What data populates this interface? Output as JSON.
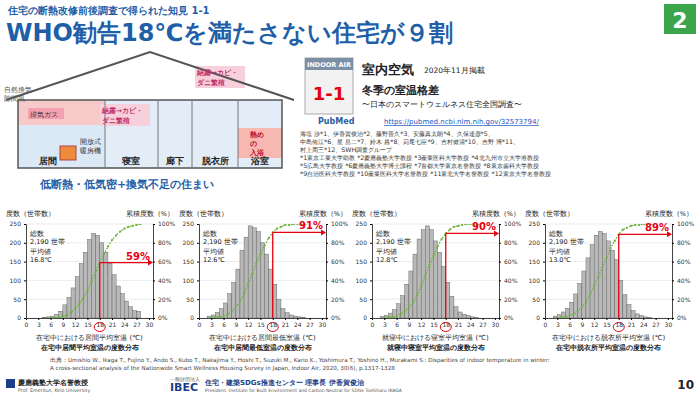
{
  "slide": {
    "kicker": "住宅の断熱改修前後調査で得られた知見 1-1",
    "title": "WHO勧告18℃を満たさない住宅が９割",
    "section_number": "2",
    "page_number": "10",
    "diagram": {
      "rooms": [
        "居間",
        "寝室",
        "廊下",
        "脱衣所",
        "浴室"
      ],
      "notes": [
        "自然換気",
        "隙間風",
        "排気ガス",
        "開放式",
        "暖房機",
        "結露→カビ・",
        "ダニ繁殖",
        "結露→カビ・",
        "ダニ繁殖",
        "熱め",
        "の",
        "入浴"
      ],
      "caption": "低断熱・低気密+換気不足の住まい"
    },
    "paper": {
      "cover_title": "INDOOR AIR",
      "badge": "1-1",
      "journal": "室内空気",
      "issue": "2020年11月掲載",
      "title": "冬季の室温格差",
      "subtitle": "〜日本のスマートウェルネス住宅全国調査〜",
      "index_name": "PubMed",
      "url": "https://pubmed.ncbi.nlm.nih.gov/32573794/",
      "authors": [
        "海塩 渉*1、伊香賀俊治*2、藤野善久*3、安藤真太朗*4、久保達彦*5、",
        "中島侑江*6、星 旦二*7、鈴木 昌*8、苅尾七臣*9、吉村健清*10、吉野 博*11、",
        "村上周三*12、SWH調査グループ",
        "*1東京工業大学助教 *2慶應義塾大学教授 *3産業医科大学教授 *4北九州市立大学准教授",
        "*5広島大学教授 *6慶應義塾大学博士課程 *7首都大学東京名誉教授 *8東京歯科大学教授",
        "*9自治医科大学教授 *10産業医科大学名誉教授 *11東北大学名誉教授 *12東京大学名誉教授"
      ]
    },
    "source": [
      "出典：Umishio W., Ikaga T., Fujino Y., Ando S., Kubo T., Nakajima Y., Hoshi T., Suzuki M., Kario K., Yoshimura T., Yoshino H., Murakami S.: Disparities of indoor temperature in winter:",
      "A cross-sectional analysis of the Nationwide Smart Wellness Housing Survey in Japan, Indoor Air, 2020, 30(6), p.1317-1328"
    ],
    "footer": {
      "org1": "慶應義塾大学名誉教授",
      "org1_sub": "Prof. Emeritus, Keio University",
      "org2_pre": "一般財団法人",
      "org2": "IBEC",
      "org2_name": "住宅・建築SDGs推進センター 理事長 伊香賀俊治",
      "org2_en": "President, Institute for Built Environment and Carbon Neutral for SDGs   Toshiharu IKAGA"
    }
  },
  "chart_data": [
    {
      "type": "histogram",
      "xlabel": "在宅中における居間平均室温 (℃)",
      "caption": "在宅中居間平均室温の度数分布",
      "ylabel": "度数（世帯数）",
      "y2label": "累積度数（%）",
      "total_label": "総数",
      "total": "2,190 世帯",
      "mean_label": "平均値",
      "mean": "16.8℃",
      "xlim": [
        0,
        31
      ],
      "xticks": [
        0,
        3,
        6,
        9,
        12,
        15,
        18,
        21,
        24,
        27,
        30
      ],
      "ylim": [
        0,
        250
      ],
      "yticks": [
        0,
        50,
        100,
        150,
        200,
        250
      ],
      "y2lim": [
        0,
        100
      ],
      "y2ticks": [
        {
          "value": 0,
          "label": "0%"
        },
        {
          "value": 20,
          "label": "20%"
        },
        {
          "value": 40,
          "label": "40%"
        },
        {
          "value": 60,
          "label": "60%"
        },
        {
          "value": 80,
          "label": "80%"
        },
        {
          "value": 100,
          "label": "100%"
        }
      ],
      "grid": true,
      "bins": [
        4,
        5,
        6,
        7,
        8,
        9,
        10,
        11,
        12,
        13,
        14,
        15,
        16,
        17,
        18,
        19,
        20,
        21,
        22,
        23,
        24,
        25,
        26,
        27,
        28
      ],
      "series": [
        {
          "type": "bar",
          "color": "#b8b8b8",
          "values": [
            2,
            3,
            5,
            10,
            18,
            35,
            55,
            80,
            110,
            145,
            175,
            209,
            225,
            220,
            200,
            175,
            145,
            115,
            85,
            65,
            45,
            30,
            20,
            18
          ]
        },
        {
          "type": "line",
          "axis": "y2",
          "color": "#6fb33f",
          "marker": "circle",
          "line_style": "dotted",
          "values": [
            0,
            0,
            0,
            1,
            2,
            3,
            6,
            10,
            15,
            21,
            29,
            39,
            49,
            59,
            68,
            76,
            83,
            88,
            92,
            95,
            97,
            98,
            99,
            100
          ]
        }
      ],
      "annotations": [
        {
          "x": 18,
          "y": 59,
          "label": "59%",
          "color": "#e60012"
        }
      ]
    },
    {
      "type": "histogram",
      "xlabel": "在宅中における居間最低室温 (℃)",
      "caption": "在宅中居間最低室温の度数分布",
      "ylabel": "度数（世帯数）",
      "y2label": "累積度数（%）",
      "total_label": "総数",
      "total": "2,190 世帯",
      "mean_label": "平均値",
      "mean": "12.6℃",
      "xlim": [
        0,
        31
      ],
      "xticks": [
        0,
        3,
        6,
        9,
        12,
        15,
        18,
        21,
        24,
        27,
        30
      ],
      "ylim": [
        0,
        250
      ],
      "yticks": [
        0,
        50,
        100,
        150,
        200,
        250
      ],
      "y2lim": [
        0,
        100
      ],
      "y2ticks": [
        {
          "value": 0,
          "label": "0%"
        },
        {
          "value": 20,
          "label": "20%"
        },
        {
          "value": 40,
          "label": "40%"
        },
        {
          "value": 60,
          "label": "60%"
        },
        {
          "value": 80,
          "label": "80%"
        },
        {
          "value": 100,
          "label": "100%"
        }
      ],
      "grid": true,
      "bins": [
        2,
        3,
        4,
        5,
        6,
        7,
        8,
        9,
        10,
        11,
        12,
        13,
        14,
        15,
        16,
        17,
        18,
        19,
        20,
        21,
        22,
        23,
        24,
        25,
        26
      ],
      "series": [
        {
          "type": "bar",
          "color": "#b8b8b8",
          "values": [
            5,
            8,
            15,
            25,
            40,
            65,
            95,
            130,
            180,
            215,
            245,
            240,
            230,
            200,
            170,
            130,
            90,
            50,
            25,
            14,
            8,
            5,
            3,
            2
          ]
        },
        {
          "type": "line",
          "axis": "y2",
          "color": "#6fb33f",
          "marker": "circle",
          "line_style": "dotted",
          "values": [
            0,
            1,
            1,
            2,
            4,
            7,
            12,
            17,
            26,
            36,
            47,
            58,
            68,
            77,
            85,
            91,
            95,
            97,
            99,
            99,
            100,
            100,
            100,
            100
          ]
        }
      ],
      "annotations": [
        {
          "x": 18,
          "y": 91,
          "label": "91%",
          "color": "#e60012"
        }
      ]
    },
    {
      "type": "histogram",
      "xlabel": "就寝中における寝室平均室温 (℃)",
      "caption": "就寝中寝室平均室温の度数分布",
      "ylabel": "度数（世帯数）",
      "y2label": "累積度数（%）",
      "total_label": "総数",
      "total": "2,190 世帯",
      "mean_label": "平均値",
      "mean": "12.8℃",
      "xlim": [
        0,
        31
      ],
      "xticks": [
        0,
        3,
        6,
        9,
        12,
        15,
        18,
        21,
        24,
        27,
        30
      ],
      "ylim": [
        0,
        250
      ],
      "yticks": [
        0,
        50,
        100,
        150,
        200,
        250
      ],
      "y2lim": [
        0,
        100
      ],
      "y2ticks": [
        {
          "value": 0,
          "label": "0%"
        },
        {
          "value": 20,
          "label": "20%"
        },
        {
          "value": 40,
          "label": "40%"
        },
        {
          "value": 60,
          "label": "60%"
        },
        {
          "value": 80,
          "label": "80%"
        },
        {
          "value": 100,
          "label": "100%"
        }
      ],
      "grid": true,
      "bins": [
        2,
        3,
        4,
        5,
        6,
        7,
        8,
        9,
        10,
        11,
        12,
        13,
        14,
        15,
        16,
        17,
        18,
        19,
        20,
        21,
        22,
        23,
        24,
        25,
        26
      ],
      "series": [
        {
          "type": "bar",
          "color": "#b8b8b8",
          "values": [
            4,
            7,
            13,
            22,
            38,
            60,
            90,
            125,
            170,
            210,
            235,
            245,
            235,
            205,
            175,
            137,
            95,
            58,
            30,
            16,
            10,
            6,
            3,
            1
          ]
        },
        {
          "type": "line",
          "axis": "y2",
          "color": "#6fb33f",
          "marker": "circle",
          "line_style": "dotted",
          "values": [
            0,
            1,
            1,
            2,
            4,
            7,
            11,
            16,
            24,
            34,
            45,
            56,
            66,
            76,
            84,
            90,
            94,
            97,
            98,
            99,
            100,
            100,
            100,
            100
          ]
        }
      ],
      "annotations": [
        {
          "x": 18,
          "y": 90,
          "label": "90%",
          "color": "#e60012"
        }
      ]
    },
    {
      "type": "histogram",
      "xlabel": "在宅中における脱衣所平均室温 (℃)",
      "caption": "在宅中脱衣所平均室温の度数分布",
      "ylabel": "度数（世帯数）",
      "y2label": "累積度数（%）",
      "total_label": "総数",
      "total": "2,190 世帯",
      "mean_label": "平均値",
      "mean": "13.0℃",
      "xlim": [
        0,
        31
      ],
      "xticks": [
        0,
        3,
        6,
        9,
        12,
        15,
        18,
        21,
        24,
        27,
        30
      ],
      "ylim": [
        0,
        250
      ],
      "yticks": [
        0,
        50,
        100,
        150,
        200,
        250
      ],
      "y2lim": [
        0,
        100
      ],
      "y2ticks": [
        {
          "value": 0,
          "label": "0%"
        },
        {
          "value": 20,
          "label": "20%"
        },
        {
          "value": 40,
          "label": "40%"
        },
        {
          "value": 60,
          "label": "60%"
        },
        {
          "value": 80,
          "label": "80%"
        },
        {
          "value": 100,
          "label": "100%"
        }
      ],
      "grid": true,
      "bins": [
        2,
        3,
        4,
        5,
        6,
        7,
        8,
        9,
        10,
        11,
        12,
        13,
        14,
        15,
        16,
        17,
        18,
        19,
        20,
        21,
        22,
        23,
        24,
        25,
        26
      ],
      "series": [
        {
          "type": "bar",
          "color": "#b8b8b8",
          "values": [
            5,
            9,
            16,
            26,
            42,
            64,
            92,
            125,
            160,
            195,
            220,
            230,
            225,
            205,
            180,
            155,
            100,
            62,
            36,
            20,
            11,
            7,
            3,
            2
          ]
        },
        {
          "type": "line",
          "axis": "y2",
          "color": "#6fb33f",
          "marker": "circle",
          "line_style": "dotted",
          "values": [
            0,
            1,
            1,
            3,
            4,
            7,
            12,
            17,
            25,
            34,
            44,
            54,
            64,
            74,
            82,
            89,
            94,
            96,
            98,
            99,
            99,
            100,
            100,
            100
          ]
        }
      ],
      "annotations": [
        {
          "x": 18,
          "y": 89,
          "label": "89%",
          "color": "#e60012"
        }
      ]
    }
  ]
}
